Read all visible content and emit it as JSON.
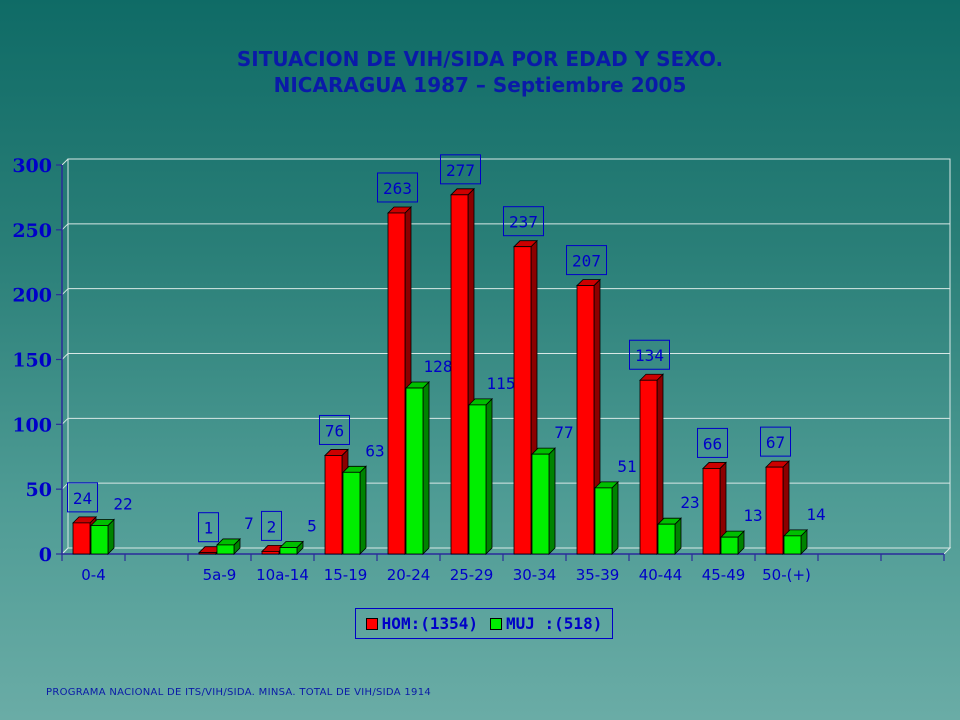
{
  "slide": {
    "title_line1": "SITUACION DE VIH/SIDA POR EDAD Y SEXO.",
    "title_line2": "NICARAGUA 1987 – Septiembre  2005",
    "footer": "PROGRAMA NACIONAL DE ITS/VIH/SIDA. MINSA. TOTAL DE VIH/SIDA 1914"
  },
  "colors": {
    "hom": "#ff0000",
    "muj": "#00ee00",
    "text": "#0000c8",
    "grid": "#d8e8e6"
  },
  "chart_data": {
    "type": "bar",
    "title": "SITUACION DE VIH/SIDA POR EDAD Y SEXO. NICARAGUA 1987 – Septiembre  2005",
    "xlabel": "",
    "ylabel": "",
    "ylim": [
      0,
      300
    ],
    "yticks": [
      "0",
      "50",
      "100",
      "150",
      "200",
      "250",
      "300"
    ],
    "grid": true,
    "legend": "bottom-center",
    "categories": [
      "0-4",
      "",
      "5a-9",
      "10a-14",
      "15-19",
      "20-24",
      "25-29",
      "30-34",
      "35-39",
      "40-44",
      "45-49",
      "50-(+)",
      "",
      ""
    ],
    "series": [
      {
        "name": "HOM:(1354)",
        "values": [
          24,
          null,
          1,
          2,
          76,
          263,
          277,
          237,
          207,
          134,
          66,
          67,
          null,
          null
        ],
        "labels": [
          "24",
          "",
          "1",
          "2",
          "76",
          "263",
          "277",
          "237",
          "207",
          "134",
          "66",
          "67",
          "",
          ""
        ]
      },
      {
        "name": "MUJ :(518)",
        "values": [
          22,
          null,
          7,
          5,
          63,
          128,
          115,
          77,
          51,
          23,
          13,
          14,
          null,
          null
        ],
        "labels": [
          "22",
          "",
          "7",
          "5",
          "63",
          "128",
          "115",
          "77",
          "51",
          "23",
          "13",
          "14",
          "",
          ""
        ]
      }
    ]
  }
}
